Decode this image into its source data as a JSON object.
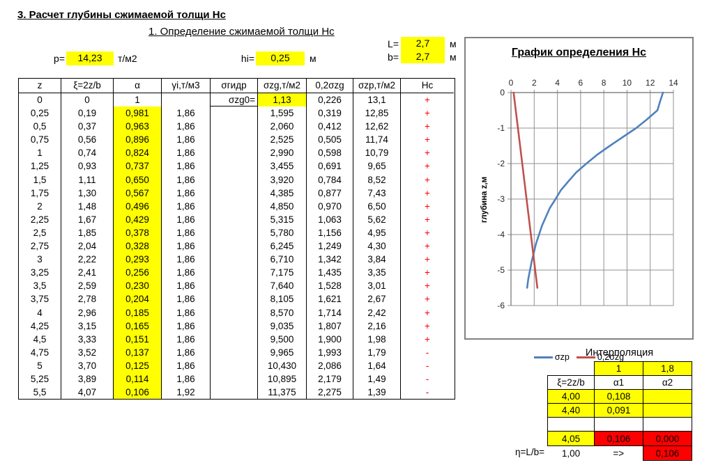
{
  "page": {
    "title": "3. Расчет глубины сжимаемой толщи Нс",
    "subtitle": "1. Определение сжимаемой толщи Нс"
  },
  "params": {
    "p_label": "p=",
    "p_value": "14,23",
    "p_unit": "т/м2",
    "hi_label": "hi=",
    "hi_value": "0,25",
    "hi_unit": "м",
    "L_label": "L=",
    "L_value": "2,7",
    "L_unit": "м",
    "b_label": "b=",
    "b_value": "2,7",
    "b_unit": "м"
  },
  "table": {
    "headers": [
      "z",
      "ξ=2z/b",
      "α",
      "γi,т/м3",
      "σгидр",
      "σzg,т/м2",
      "0,2σzg",
      "σzp,т/м2",
      "Нс"
    ],
    "rows": [
      [
        "0",
        "0",
        "1",
        "",
        "σzg0=",
        "1,13",
        "0,226",
        "13,1",
        "+"
      ],
      [
        "0,25",
        "0,19",
        "0,981",
        "1,86",
        "",
        "1,595",
        "0,319",
        "12,85",
        "+"
      ],
      [
        "0,5",
        "0,37",
        "0,963",
        "1,86",
        "",
        "2,060",
        "0,412",
        "12,62",
        "+"
      ],
      [
        "0,75",
        "0,56",
        "0,896",
        "1,86",
        "",
        "2,525",
        "0,505",
        "11,74",
        "+"
      ],
      [
        "1",
        "0,74",
        "0,824",
        "1,86",
        "",
        "2,990",
        "0,598",
        "10,79",
        "+"
      ],
      [
        "1,25",
        "0,93",
        "0,737",
        "1,86",
        "",
        "3,455",
        "0,691",
        "9,65",
        "+"
      ],
      [
        "1,5",
        "1,11",
        "0,650",
        "1,86",
        "",
        "3,920",
        "0,784",
        "8,52",
        "+"
      ],
      [
        "1,75",
        "1,30",
        "0,567",
        "1,86",
        "",
        "4,385",
        "0,877",
        "7,43",
        "+"
      ],
      [
        "2",
        "1,48",
        "0,496",
        "1,86",
        "",
        "4,850",
        "0,970",
        "6,50",
        "+"
      ],
      [
        "2,25",
        "1,67",
        "0,429",
        "1,86",
        "",
        "5,315",
        "1,063",
        "5,62",
        "+"
      ],
      [
        "2,5",
        "1,85",
        "0,378",
        "1,86",
        "",
        "5,780",
        "1,156",
        "4,95",
        "+"
      ],
      [
        "2,75",
        "2,04",
        "0,328",
        "1,86",
        "",
        "6,245",
        "1,249",
        "4,30",
        "+"
      ],
      [
        "3",
        "2,22",
        "0,293",
        "1,86",
        "",
        "6,710",
        "1,342",
        "3,84",
        "+"
      ],
      [
        "3,25",
        "2,41",
        "0,256",
        "1,86",
        "",
        "7,175",
        "1,435",
        "3,35",
        "+"
      ],
      [
        "3,5",
        "2,59",
        "0,230",
        "1,86",
        "",
        "7,640",
        "1,528",
        "3,01",
        "+"
      ],
      [
        "3,75",
        "2,78",
        "0,204",
        "1,86",
        "",
        "8,105",
        "1,621",
        "2,67",
        "+"
      ],
      [
        "4",
        "2,96",
        "0,185",
        "1,86",
        "",
        "8,570",
        "1,714",
        "2,42",
        "+"
      ],
      [
        "4,25",
        "3,15",
        "0,165",
        "1,86",
        "",
        "9,035",
        "1,807",
        "2,16",
        "+"
      ],
      [
        "4,5",
        "3,33",
        "0,151",
        "1,86",
        "",
        "9,500",
        "1,900",
        "1,98",
        "+"
      ],
      [
        "4,75",
        "3,52",
        "0,137",
        "1,86",
        "",
        "9,965",
        "1,993",
        "1,79",
        "-"
      ],
      [
        "5",
        "3,70",
        "0,125",
        "1,86",
        "",
        "10,430",
        "2,086",
        "1,64",
        "-"
      ],
      [
        "5,25",
        "3,89",
        "0,114",
        "1,86",
        "",
        "10,895",
        "2,179",
        "1,49",
        "-"
      ],
      [
        "5,5",
        "4,07",
        "0,106",
        "1,92",
        "",
        "11,375",
        "2,275",
        "1,39",
        "-"
      ]
    ]
  },
  "chart_data": {
    "type": "line",
    "title": "График определения Нс",
    "ylabel": "глубина z,м",
    "xlim": [
      0,
      14
    ],
    "ylim": [
      -6,
      0
    ],
    "x_ticks": [
      0,
      2,
      4,
      6,
      8,
      10,
      12,
      14
    ],
    "y_ticks": [
      0,
      -1,
      -2,
      -3,
      -4,
      -5,
      -6
    ],
    "grid": true,
    "legend_position": "bottom",
    "depths": [
      0,
      -0.25,
      -0.5,
      -0.75,
      -1,
      -1.25,
      -1.5,
      -1.75,
      -2,
      -2.25,
      -2.5,
      -2.75,
      -3,
      -3.25,
      -3.5,
      -3.75,
      -4,
      -4.25,
      -4.5,
      -4.75,
      -5,
      -5.25,
      -5.5
    ],
    "series": [
      {
        "name": "σzp",
        "color": "#4F81BD",
        "values": [
          13.1,
          12.85,
          12.62,
          11.74,
          10.79,
          9.65,
          8.52,
          7.43,
          6.5,
          5.62,
          4.95,
          4.3,
          3.84,
          3.35,
          3.01,
          2.67,
          2.42,
          2.16,
          1.98,
          1.79,
          1.64,
          1.49,
          1.39
        ]
      },
      {
        "name": "0,2σzg",
        "color": "#C0504D",
        "values": [
          0.226,
          0.319,
          0.412,
          0.505,
          0.598,
          0.691,
          0.784,
          0.877,
          0.97,
          1.063,
          1.156,
          1.249,
          1.342,
          1.435,
          1.528,
          1.621,
          1.714,
          1.807,
          1.9,
          1.993,
          2.086,
          2.179,
          2.275
        ]
      }
    ]
  },
  "interpolation": {
    "title": "Интерполяция",
    "eta_header": [
      "1",
      "1,8"
    ],
    "headers": [
      "ξ=2z/b",
      "α1",
      "α2"
    ],
    "r1": [
      "4,00",
      "0,108",
      ""
    ],
    "r2": [
      "4,40",
      "0,091",
      ""
    ],
    "result": [
      "4,05",
      "0,106",
      "0,000"
    ],
    "eta_label": "η=L/b=",
    "eta_value": "1,00",
    "arrow": "=>",
    "final_value": "0,106"
  },
  "colors": {
    "highlight": "#FFFF00",
    "alert_fill": "#FF0000",
    "plus_minus_text": "#FF0000",
    "series_blue": "#4F81BD",
    "series_red": "#C0504D",
    "grid_line": "#909090",
    "chart_border": "#808080"
  }
}
